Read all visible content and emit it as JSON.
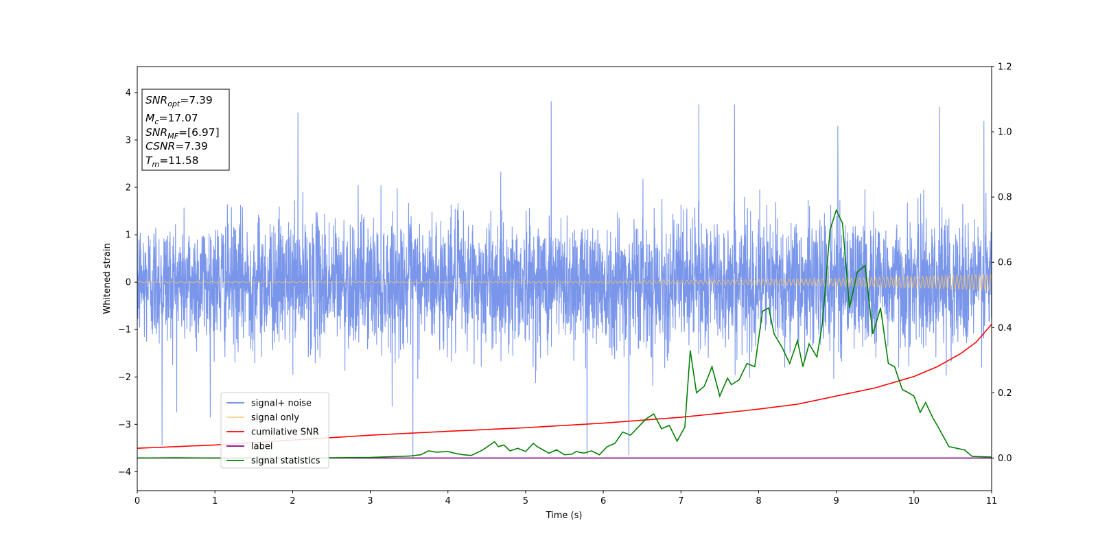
{
  "chart_data": {
    "type": "line",
    "xlabel": "Time (s)",
    "ylabel": "Whitened strain",
    "xlim": [
      0,
      11
    ],
    "ylim": [
      -4.4,
      4.55
    ],
    "y2lim": [
      -0.1,
      1.2
    ],
    "xticks": [
      0,
      1,
      2,
      3,
      4,
      5,
      6,
      7,
      8,
      9,
      10,
      11
    ],
    "yticks": [
      -4,
      -3,
      -2,
      -1,
      0,
      1,
      2,
      3,
      4
    ],
    "y2ticks": [
      0.0,
      0.2,
      0.4,
      0.6,
      0.8,
      1.0,
      1.2
    ],
    "y2tick_labels": [
      "0.0",
      "0.2",
      "0.4",
      "0.6",
      "0.8",
      "1.0",
      "1.2"
    ],
    "grid": false,
    "legend_position": "lower-left",
    "colors": {
      "signal_noise": "#4169e1",
      "signal_only": "#f5c46b",
      "cumulative_snr": "#ff0000",
      "label": "#800080",
      "signal_statistics": "#008000"
    },
    "info_box": {
      "lines": [
        {
          "var": "SNR",
          "sub": "opt",
          "val": "=7.39"
        },
        {
          "var": "M",
          "sub": "c",
          "val": "=17.07"
        },
        {
          "var": "SNR",
          "sub": "MF",
          "val": "=[6.97]"
        },
        {
          "var": "CSNR",
          "sub": "",
          "val": "=7.39"
        },
        {
          "var": "T",
          "sub": "m",
          "val": "=11.58"
        }
      ]
    },
    "series": [
      {
        "name": "signal+ noise",
        "axis": "left",
        "style": "noise",
        "sigma": 0.68,
        "x_start": 0,
        "x_end": 11,
        "note_peaks": [
          [
            0.32,
            -3.45
          ],
          [
            2.07,
            3.58
          ],
          [
            3.55,
            -3.72
          ],
          [
            5.33,
            3.82
          ],
          [
            5.79,
            -3.65
          ],
          [
            6.33,
            -3.65
          ],
          [
            7.23,
            3.75
          ],
          [
            7.69,
            3.75
          ],
          [
            9.02,
            3.3
          ],
          [
            10.33,
            3.7
          ],
          [
            10.9,
            3.4
          ],
          [
            11.0,
            3.5
          ]
        ]
      },
      {
        "name": "signal only",
        "axis": "left",
        "style": "chirp",
        "amplitude_start": 0.012,
        "amplitude_end": 0.17
      },
      {
        "name": "cumilative SNR",
        "axis": "right",
        "x": [
          0,
          1,
          2,
          3,
          4,
          5,
          6,
          7,
          7.5,
          8,
          8.5,
          9,
          9.5,
          10,
          10.3,
          10.6,
          10.8,
          11
        ],
        "y": [
          0.03,
          0.04,
          0.055,
          0.07,
          0.082,
          0.093,
          0.107,
          0.125,
          0.137,
          0.15,
          0.165,
          0.19,
          0.215,
          0.25,
          0.28,
          0.32,
          0.355,
          0.41
        ]
      },
      {
        "name": "label",
        "axis": "right",
        "x": [
          0,
          11
        ],
        "y": [
          0.0,
          0.0
        ]
      },
      {
        "name": "signal statistics",
        "axis": "right",
        "x": [
          0,
          0.5,
          1,
          2,
          3,
          3.5,
          3.65,
          3.75,
          3.85,
          4.0,
          4.1,
          4.2,
          4.3,
          4.45,
          4.6,
          4.65,
          4.72,
          4.8,
          4.9,
          5.0,
          5.1,
          5.15,
          5.3,
          5.4,
          5.5,
          5.6,
          5.65,
          5.75,
          5.85,
          5.95,
          6.05,
          6.15,
          6.25,
          6.35,
          6.45,
          6.55,
          6.65,
          6.75,
          6.85,
          6.95,
          7.05,
          7.12,
          7.2,
          7.3,
          7.4,
          7.5,
          7.6,
          7.65,
          7.75,
          7.85,
          7.95,
          8.05,
          8.13,
          8.2,
          8.3,
          8.4,
          8.5,
          8.57,
          8.65,
          8.75,
          8.82,
          8.92,
          9.0,
          9.08,
          9.17,
          9.27,
          9.37,
          9.47,
          9.57,
          9.67,
          9.75,
          9.85,
          9.93,
          10.0,
          10.08,
          10.15,
          10.25,
          10.3,
          10.45,
          10.55,
          10.65,
          10.75,
          11.0
        ],
        "y": [
          0.0,
          0.001,
          0.0,
          0.0,
          0.002,
          0.006,
          0.01,
          0.022,
          0.018,
          0.02,
          0.014,
          0.01,
          0.008,
          0.025,
          0.05,
          0.035,
          0.04,
          0.022,
          0.03,
          0.02,
          0.045,
          0.035,
          0.015,
          0.025,
          0.01,
          0.012,
          0.02,
          0.015,
          0.022,
          0.01,
          0.035,
          0.045,
          0.08,
          0.07,
          0.095,
          0.12,
          0.135,
          0.09,
          0.1,
          0.052,
          0.095,
          0.33,
          0.2,
          0.22,
          0.28,
          0.19,
          0.245,
          0.225,
          0.24,
          0.29,
          0.28,
          0.45,
          0.46,
          0.38,
          0.34,
          0.29,
          0.36,
          0.28,
          0.35,
          0.31,
          0.41,
          0.7,
          0.76,
          0.72,
          0.46,
          0.57,
          0.59,
          0.38,
          0.46,
          0.29,
          0.28,
          0.21,
          0.2,
          0.19,
          0.14,
          0.17,
          0.12,
          0.1,
          0.035,
          0.03,
          0.025,
          0.005,
          0.003
        ]
      }
    ]
  }
}
